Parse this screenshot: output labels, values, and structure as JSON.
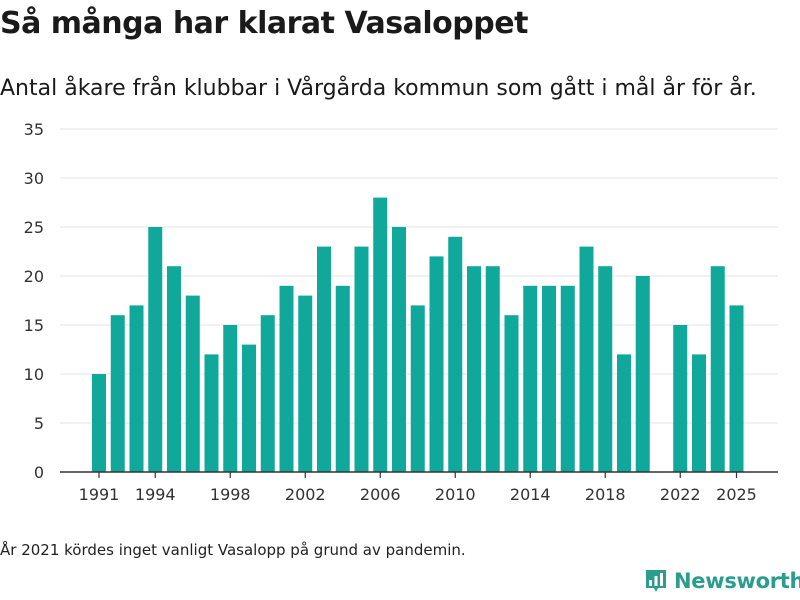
{
  "header": {
    "title": "Så många har klarat Vasaloppet",
    "subtitle": "Antal åkare från klubbar i Vårgårda kommun som gått i mål år för år."
  },
  "footnote": "År 2021 kördes inget vanligt Vasalopp på grund av pandemin.",
  "brand": {
    "name": "Newsworthy",
    "icon": "newsworthy-logo-icon",
    "color": "#2a9d8f"
  },
  "chart_data": {
    "type": "bar",
    "title": "Så många har klarat Vasaloppet",
    "subtitle": "Antal åkare från klubbar i Vårgårda kommun som gått i mål år för år.",
    "xlabel": "",
    "ylabel": "",
    "ylim": [
      0,
      35
    ],
    "yticks": [
      0,
      5,
      10,
      15,
      20,
      25,
      30,
      35
    ],
    "xticks": [
      1991,
      1994,
      1998,
      2002,
      2006,
      2010,
      2014,
      2018,
      2022,
      2025
    ],
    "grid": true,
    "bar_color": "#0fa89a",
    "categories": [
      1991,
      1992,
      1993,
      1994,
      1995,
      1996,
      1997,
      1998,
      1999,
      2000,
      2001,
      2002,
      2003,
      2004,
      2005,
      2006,
      2007,
      2008,
      2009,
      2010,
      2011,
      2012,
      2013,
      2014,
      2015,
      2016,
      2017,
      2018,
      2019,
      2020,
      2021,
      2022,
      2023,
      2024,
      2025
    ],
    "values": [
      10,
      16,
      17,
      25,
      21,
      18,
      12,
      15,
      13,
      16,
      19,
      18,
      23,
      19,
      23,
      28,
      25,
      17,
      22,
      24,
      21,
      21,
      16,
      19,
      19,
      19,
      23,
      21,
      12,
      20,
      null,
      15,
      12,
      21,
      17
    ]
  }
}
